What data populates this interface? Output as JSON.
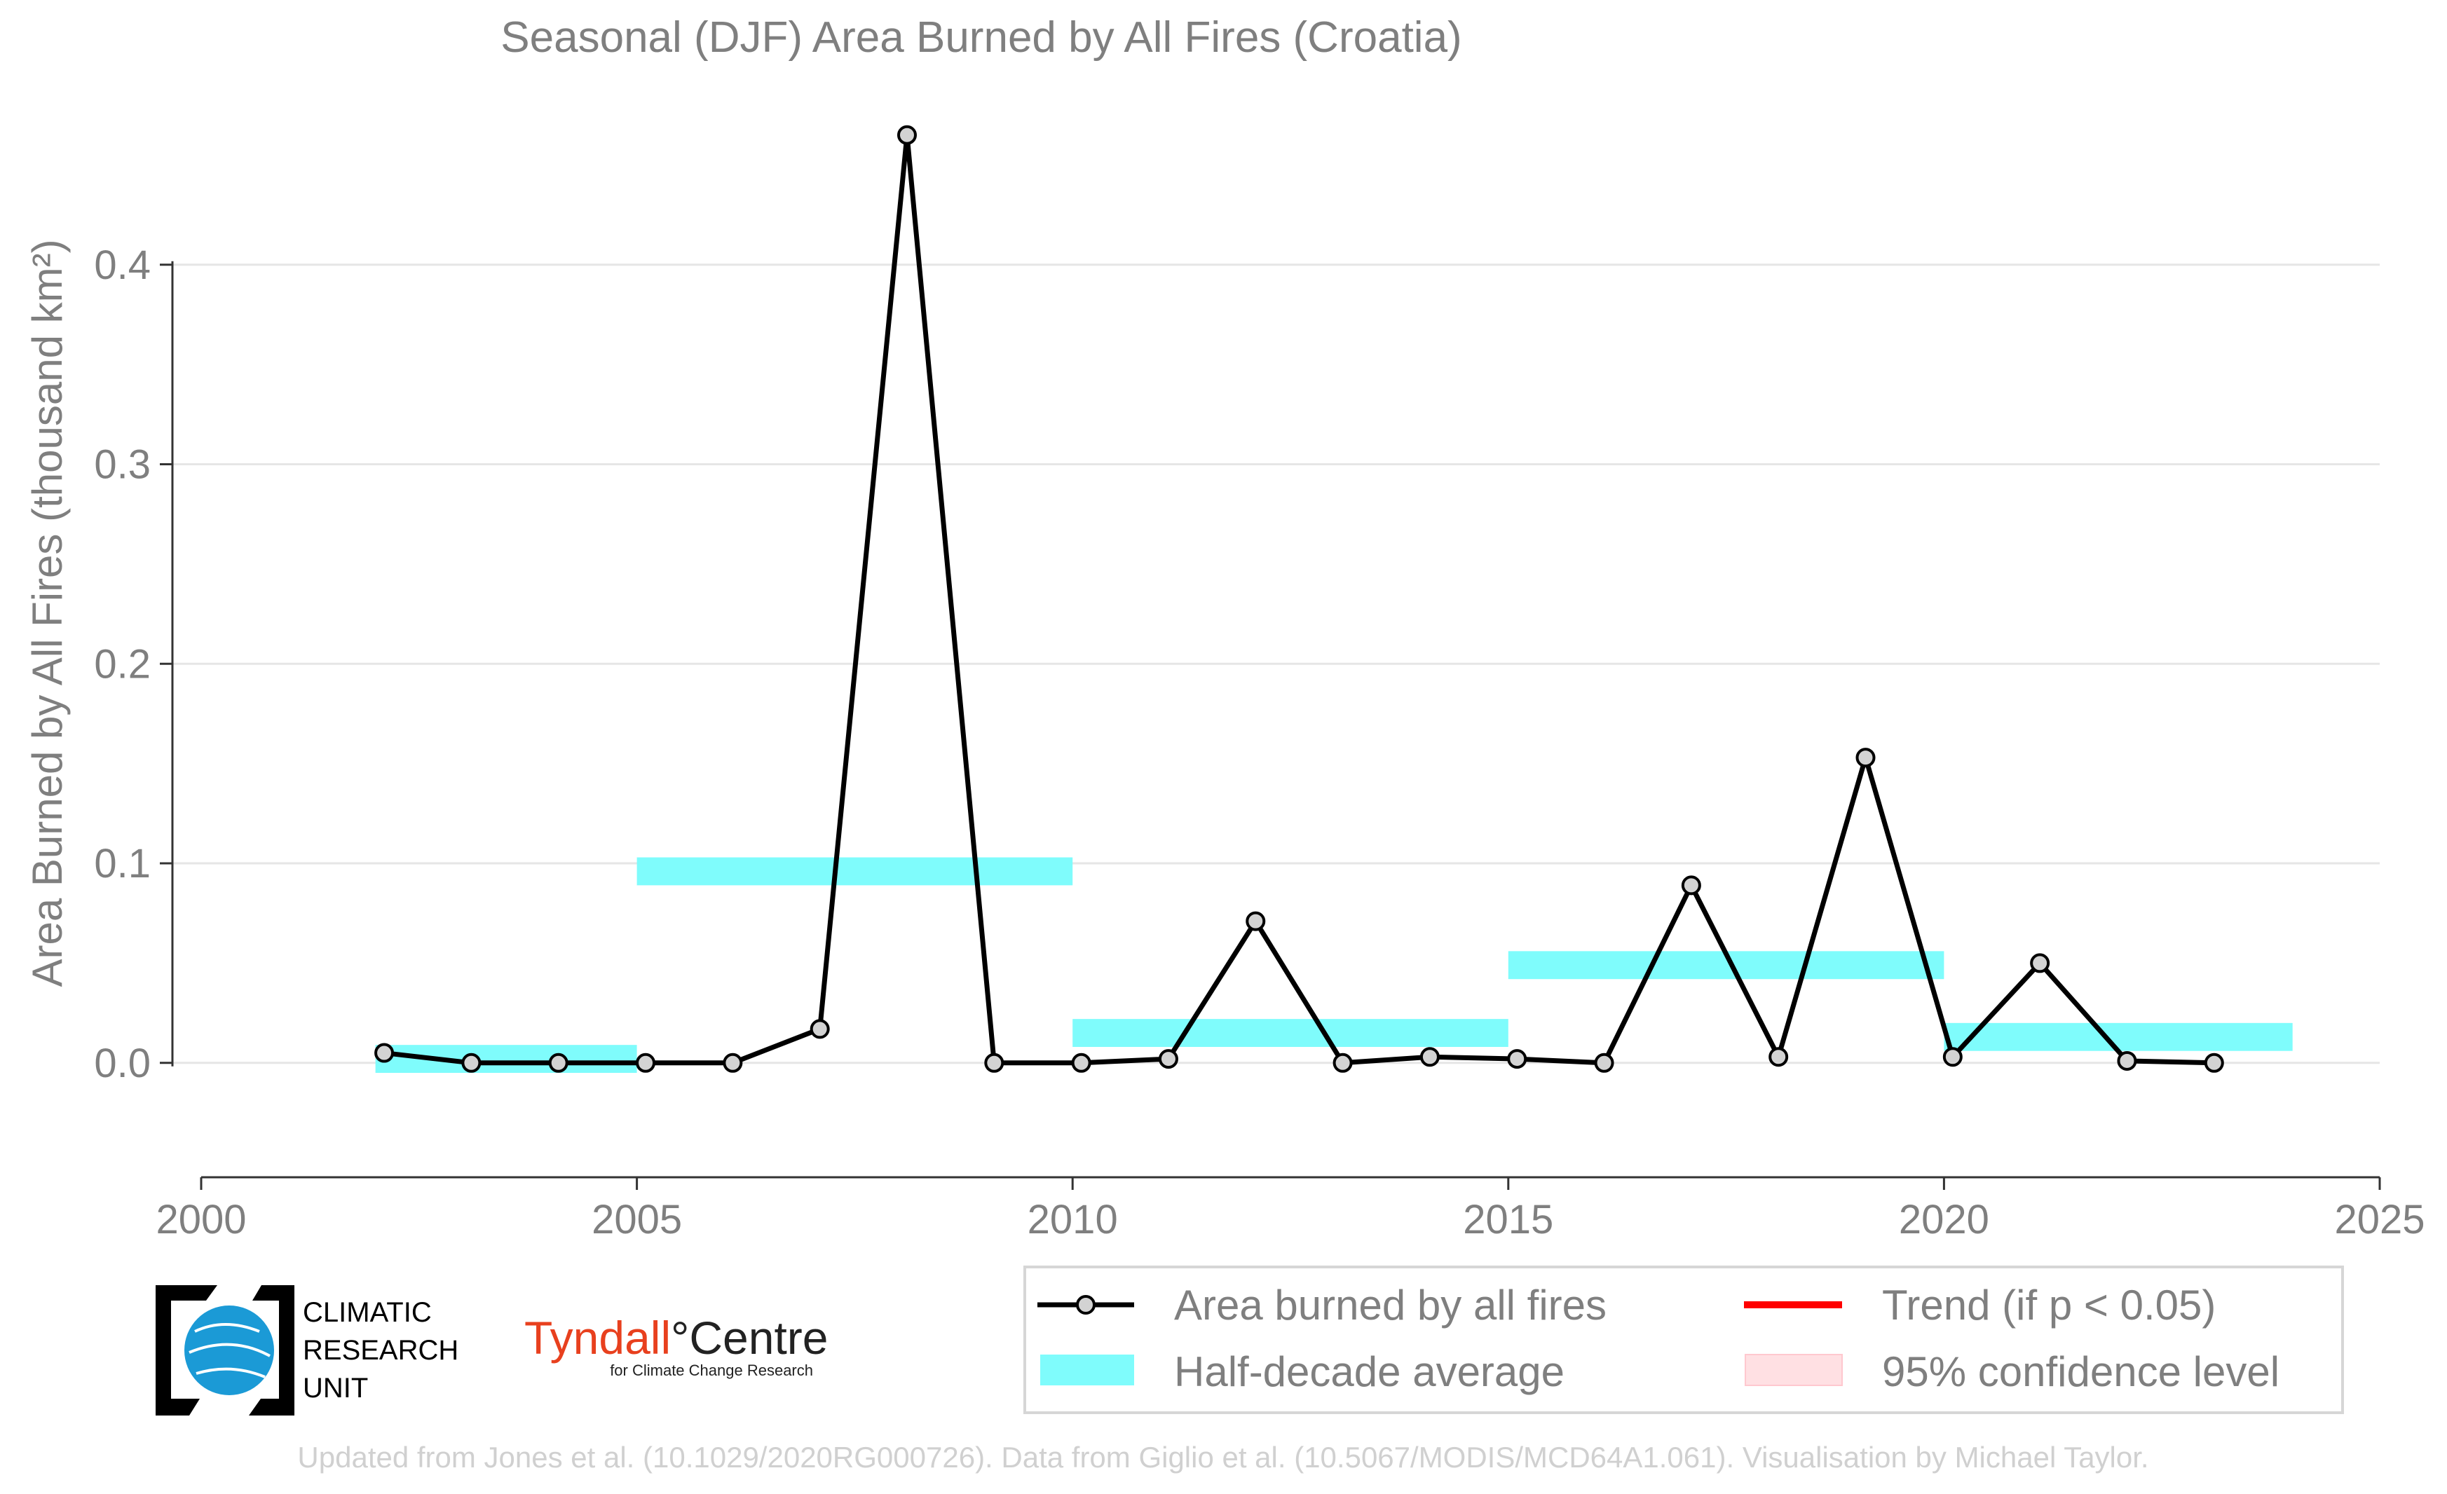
{
  "chart_data": {
    "type": "line",
    "title": "Seasonal (DJF) Area Burned by All Fires (Croatia)",
    "ylabel": "Area Burned by All Fires (thousand km²)",
    "xlabel": "",
    "xlim": [
      2000,
      2025
    ],
    "ylim": [
      -0.038,
      0.48
    ],
    "x_ticks": [
      2000,
      2005,
      2010,
      2015,
      2020,
      2025
    ],
    "y_ticks": [
      0.0,
      0.1,
      0.2,
      0.3,
      0.4
    ],
    "y_tick_labels": [
      "0.0",
      "0.1",
      "0.2",
      "0.3",
      "0.4"
    ],
    "grid": "horizontal",
    "series": [
      {
        "name": "Area burned by all fires",
        "color": "#000000",
        "marker_fill": "#d3d3d3",
        "x": [
          2002.1,
          2003.1,
          2004.1,
          2005.1,
          2006.1,
          2007.1,
          2008.1,
          2009.1,
          2010.1,
          2011.1,
          2012.1,
          2013.1,
          2014.1,
          2015.1,
          2016.1,
          2017.1,
          2018.1,
          2019.1,
          2020.1,
          2021.1,
          2022.1,
          2023.1
        ],
        "y": [
          0.005,
          0.0,
          0.0,
          0.0,
          0.0,
          0.017,
          0.465,
          0.0,
          0.0,
          0.002,
          0.071,
          0.0,
          0.003,
          0.002,
          0.0,
          0.089,
          0.003,
          0.153,
          0.003,
          0.05,
          0.001,
          0.0
        ]
      }
    ],
    "half_decade_average": {
      "name": "Half-decade average",
      "color": "#7ffcfc",
      "thickness": 0.014,
      "segments": [
        {
          "x0": 2002,
          "x1": 2005,
          "y": 0.002
        },
        {
          "x0": 2005,
          "x1": 2010,
          "y": 0.096
        },
        {
          "x0": 2010,
          "x1": 2015,
          "y": 0.015
        },
        {
          "x0": 2015,
          "x1": 2020,
          "y": 0.049
        },
        {
          "x0": 2020,
          "x1": 2024,
          "y": 0.013
        }
      ]
    },
    "legend": {
      "placement": "bottom-right",
      "entries": [
        {
          "label": "Area burned by all fires",
          "kind": "line-marker",
          "color": "#000000"
        },
        {
          "label": "Trend (if p < 0.05)",
          "kind": "line",
          "color": "#ff0000"
        },
        {
          "label": "Half-decade average",
          "kind": "band",
          "color": "#7ffcfc"
        },
        {
          "label": "95% confidence level",
          "kind": "band",
          "color": "#ffe0e3"
        }
      ]
    }
  },
  "logos": {
    "cru_line1": "CLIMATIC",
    "cru_line2": "RESEARCH",
    "cru_line3": "UNIT",
    "tyndall_red": "Tyndall",
    "tyndall_grey": "°Centre",
    "tyndall_sub": "for Climate Change Research"
  },
  "credit": "Updated from Jones et al. (10.1029/2020RG000726). Data from Giglio et al. (10.5067/MODIS/MCD64A1.061). Visualisation by Michael Taylor."
}
